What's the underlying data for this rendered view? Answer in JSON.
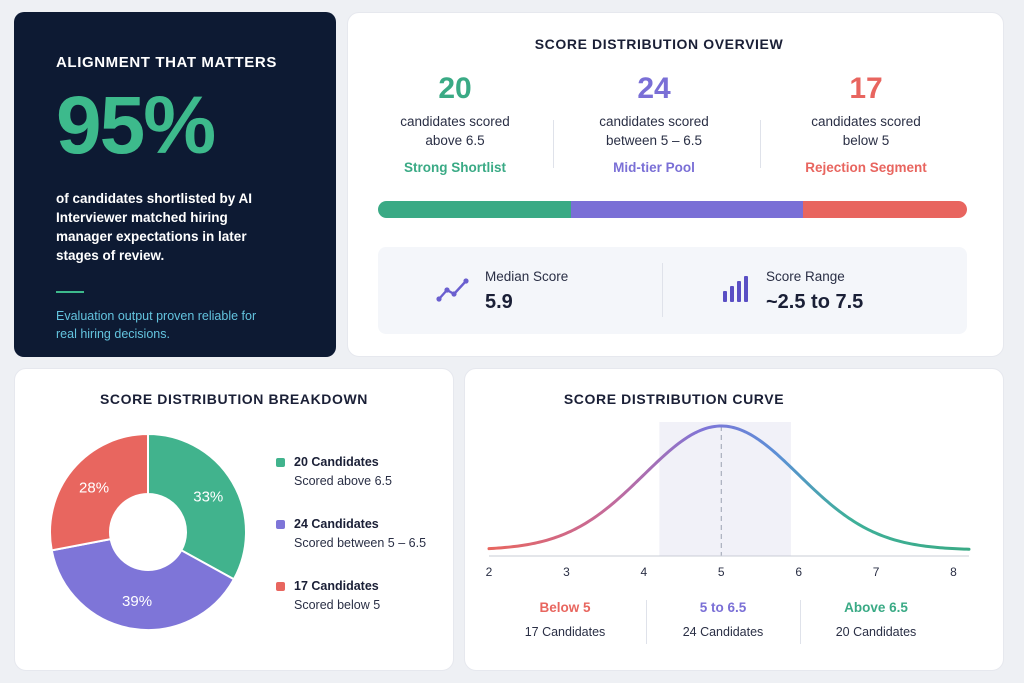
{
  "alignment": {
    "heading": "ALIGNMENT THAT MATTERS",
    "percent": "95%",
    "description": "of candidates shortlisted by AI Interviewer matched hiring manager expectations in later stages of review.",
    "note": "Evaluation output proven reliable for real hiring decisions."
  },
  "overview": {
    "title": "SCORE DISTRIBUTION OVERVIEW",
    "stats": [
      {
        "count": "20",
        "line1": "candidates scored",
        "line2": "above 6.5",
        "segment": "Strong Shortlist",
        "color": "#3aaa85"
      },
      {
        "count": "24",
        "line1": "candidates scored",
        "line2": "between 5 – 6.5",
        "segment": "Mid-tier Pool",
        "color": "#7a6fd6"
      },
      {
        "count": "17",
        "line1": "candidates scored",
        "line2": "below 5",
        "segment": "Rejection Segment",
        "color": "#e8655f"
      }
    ],
    "median_label": "Median Score",
    "median_value": "5.9",
    "range_label": "Score Range",
    "range_value": "~2.5 to 7.5"
  },
  "breakdown": {
    "title": "SCORE DISTRIBUTION BREAKDOWN",
    "legend": [
      {
        "title": "20 Candidates",
        "sub": "Scored above 6.5",
        "color": "#41b38d"
      },
      {
        "title": "24 Candidates",
        "sub": "Scored between 5 – 6.5",
        "color": "#7e75d8"
      },
      {
        "title": "17 Candidates",
        "sub": "Scored below 5",
        "color": "#e8665f"
      }
    ]
  },
  "curve": {
    "title": "SCORE DISTRIBUTION CURVE",
    "zones": [
      {
        "label": "Below 5",
        "count": "17 Candidates",
        "color": "#e8665f"
      },
      {
        "label": "5 to 6.5",
        "count": "24 Candidates",
        "color": "#7a6fd6"
      },
      {
        "label": "Above 6.5",
        "count": "20 Candidates",
        "color": "#3aaa85"
      }
    ]
  },
  "chart_data": [
    {
      "type": "bar",
      "title": "SCORE DISTRIBUTION OVERVIEW",
      "orientation": "stacked-horizontal",
      "categories": [
        "Strong Shortlist",
        "Mid-tier Pool",
        "Rejection Segment"
      ],
      "values": [
        20,
        24,
        17
      ],
      "colors": [
        "#3aaa85",
        "#7a6fd6",
        "#e8655f"
      ]
    },
    {
      "type": "pie",
      "title": "SCORE DISTRIBUTION BREAKDOWN",
      "donut": true,
      "categories": [
        "Scored above 6.5",
        "Scored between 5 – 6.5",
        "Scored below 5"
      ],
      "values": [
        33,
        39,
        28
      ],
      "labels": [
        "33%",
        "39%",
        "28%"
      ],
      "colors": [
        "#41b38d",
        "#7e75d8",
        "#e8665f"
      ]
    },
    {
      "type": "line",
      "title": "SCORE DISTRIBUTION CURVE",
      "x_ticks": [
        2,
        3,
        4,
        5,
        6,
        7,
        8
      ],
      "xlim": [
        2,
        8.2
      ],
      "mean": 5,
      "highlight_range": [
        4.2,
        5.9
      ],
      "distribution": "normal",
      "std": 1.0,
      "grid": false
    }
  ]
}
